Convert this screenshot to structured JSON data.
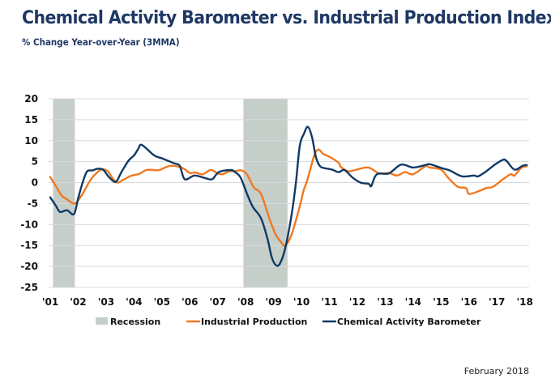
{
  "header": {
    "title": "Chemical Activity Barometer vs. Industrial Production Index",
    "subtitle": "% Change Year-over-Year (3MMA)"
  },
  "footer": {
    "date": "February 2018"
  },
  "colors": {
    "title": "#1f3864",
    "industrial_production": "#f07820",
    "chemical_activity_barometer": "#0f3a66",
    "recession": "#c5cec9",
    "grid": "#d9d9d9"
  },
  "chart_data": {
    "type": "line",
    "title": "Chemical Activity Barometer vs. Industrial Production Index",
    "subtitle": "% Change Year-over-Year (3MMA)",
    "xlabel": "",
    "ylabel": "",
    "xlim": [
      2001,
      2018.15
    ],
    "ylim": [
      -25,
      20
    ],
    "yticks": [
      20,
      15,
      10,
      5,
      0,
      -5,
      -10,
      -15,
      -20,
      -25
    ],
    "ytick_labels": [
      "20",
      "15",
      "10",
      "5",
      "0",
      "-5",
      "-10",
      "-15",
      "-20",
      "-25"
    ],
    "xticks": [
      2001,
      2002,
      2003,
      2004,
      2005,
      2006,
      2007,
      2008,
      2009,
      2010,
      2011,
      2012,
      2013,
      2014,
      2015,
      2016,
      2017,
      2018
    ],
    "xtick_labels": [
      "'01",
      "'02",
      "'03",
      "'04",
      "'05",
      "'06",
      "'07",
      "'08",
      "'09",
      "'10",
      "'11",
      "'12",
      "'13",
      "'14",
      "'15",
      "'16",
      "'17",
      "'18"
    ],
    "grid": true,
    "legend_position": "bottom",
    "legend": [
      "Recession",
      "Industrial Production",
      "Chemical Activity Barometer"
    ],
    "recessions": [
      {
        "start": 2001.1,
        "end": 2001.88
      },
      {
        "start": 2007.92,
        "end": 2009.5
      }
    ],
    "series": [
      {
        "name": "Industrial Production",
        "color": "#f07820",
        "points": [
          [
            2001.0,
            1.3
          ],
          [
            2001.2,
            -0.8
          ],
          [
            2001.4,
            -3.0
          ],
          [
            2001.6,
            -4.0
          ],
          [
            2001.87,
            -5.0
          ],
          [
            2002.1,
            -3.3
          ],
          [
            2002.35,
            -0.4
          ],
          [
            2002.54,
            1.5
          ],
          [
            2002.83,
            3.1
          ],
          [
            2003.06,
            2.7
          ],
          [
            2003.26,
            0.8
          ],
          [
            2003.41,
            0.0
          ],
          [
            2003.6,
            0.6
          ],
          [
            2003.85,
            1.5
          ],
          [
            2004.0,
            1.8
          ],
          [
            2004.2,
            2.1
          ],
          [
            2004.44,
            3.0
          ],
          [
            2004.7,
            3.0
          ],
          [
            2004.9,
            3.0
          ],
          [
            2005.3,
            4.0
          ],
          [
            2005.73,
            3.5
          ],
          [
            2006.0,
            2.3
          ],
          [
            2006.2,
            2.4
          ],
          [
            2006.46,
            2.0
          ],
          [
            2006.75,
            3.0
          ],
          [
            2007.0,
            2.2
          ],
          [
            2007.18,
            2.0
          ],
          [
            2007.4,
            2.7
          ],
          [
            2007.6,
            2.7
          ],
          [
            2007.85,
            2.9
          ],
          [
            2008.05,
            1.9
          ],
          [
            2008.3,
            -1.2
          ],
          [
            2008.55,
            -2.7
          ],
          [
            2008.85,
            -8.5
          ],
          [
            2009.07,
            -12.3
          ],
          [
            2009.27,
            -14.2
          ],
          [
            2009.42,
            -15.0
          ],
          [
            2009.65,
            -12.3
          ],
          [
            2009.94,
            -5.6
          ],
          [
            2010.07,
            -2.0
          ],
          [
            2010.19,
            0.2
          ],
          [
            2010.33,
            3.5
          ],
          [
            2010.48,
            6.9
          ],
          [
            2010.62,
            7.9
          ],
          [
            2010.77,
            6.9
          ],
          [
            2011.05,
            6.0
          ],
          [
            2011.35,
            4.6
          ],
          [
            2011.4,
            3.8
          ],
          [
            2011.68,
            2.7
          ],
          [
            2011.97,
            3.1
          ],
          [
            2012.4,
            3.6
          ],
          [
            2012.78,
            2.2
          ],
          [
            2013.13,
            2.3
          ],
          [
            2013.42,
            1.7
          ],
          [
            2013.71,
            2.5
          ],
          [
            2014.0,
            2.0
          ],
          [
            2014.44,
            3.9
          ],
          [
            2014.6,
            3.6
          ],
          [
            2015.0,
            3.1
          ],
          [
            2015.25,
            1.2
          ],
          [
            2015.6,
            -1.0
          ],
          [
            2015.89,
            -1.3
          ],
          [
            2016.0,
            -2.7
          ],
          [
            2016.33,
            -2.1
          ],
          [
            2016.62,
            -1.3
          ],
          [
            2016.86,
            -1.0
          ],
          [
            2017.2,
            0.7
          ],
          [
            2017.49,
            2.0
          ],
          [
            2017.63,
            1.7
          ],
          [
            2017.87,
            3.5
          ],
          [
            2018.07,
            3.9
          ]
        ]
      },
      {
        "name": "Chemical Activity Barometer",
        "color": "#0f3a66",
        "points": [
          [
            2001.0,
            -3.5
          ],
          [
            2001.2,
            -5.5
          ],
          [
            2001.35,
            -7.0
          ],
          [
            2001.6,
            -6.6
          ],
          [
            2001.85,
            -7.5
          ],
          [
            2002.0,
            -3.7
          ],
          [
            2002.17,
            0.2
          ],
          [
            2002.32,
            2.7
          ],
          [
            2002.52,
            2.9
          ],
          [
            2002.68,
            3.3
          ],
          [
            2002.89,
            3.1
          ],
          [
            2003.12,
            1.2
          ],
          [
            2003.35,
            0.2
          ],
          [
            2003.55,
            2.5
          ],
          [
            2003.8,
            5.2
          ],
          [
            2004.0,
            6.5
          ],
          [
            2004.15,
            8.0
          ],
          [
            2004.28,
            9.0
          ],
          [
            2004.72,
            6.5
          ],
          [
            2005.0,
            5.8
          ],
          [
            2005.44,
            4.6
          ],
          [
            2005.64,
            4.0
          ],
          [
            2005.82,
            0.8
          ],
          [
            2006.17,
            1.7
          ],
          [
            2006.54,
            1.1
          ],
          [
            2006.8,
            0.8
          ],
          [
            2007.04,
            2.5
          ],
          [
            2007.47,
            3.0
          ],
          [
            2007.62,
            2.5
          ],
          [
            2007.82,
            1.2
          ],
          [
            2008.05,
            -2.7
          ],
          [
            2008.26,
            -5.8
          ],
          [
            2008.55,
            -8.5
          ],
          [
            2008.78,
            -13.3
          ],
          [
            2008.93,
            -17.7
          ],
          [
            2009.07,
            -19.6
          ],
          [
            2009.22,
            -19.4
          ],
          [
            2009.42,
            -15.6
          ],
          [
            2009.65,
            -7.5
          ],
          [
            2009.8,
            0.0
          ],
          [
            2009.94,
            8.8
          ],
          [
            2010.09,
            11.7
          ],
          [
            2010.23,
            13.3
          ],
          [
            2010.38,
            10.8
          ],
          [
            2010.52,
            6.0
          ],
          [
            2010.67,
            3.9
          ],
          [
            2010.87,
            3.4
          ],
          [
            2011.1,
            3.1
          ],
          [
            2011.33,
            2.5
          ],
          [
            2011.54,
            3.0
          ],
          [
            2011.83,
            1.2
          ],
          [
            2012.12,
            0.0
          ],
          [
            2012.41,
            -0.3
          ],
          [
            2012.5,
            -0.8
          ],
          [
            2012.7,
            2.0
          ],
          [
            2013.13,
            2.2
          ],
          [
            2013.57,
            4.3
          ],
          [
            2014.0,
            3.6
          ],
          [
            2014.44,
            4.2
          ],
          [
            2014.6,
            4.4
          ],
          [
            2015.0,
            3.5
          ],
          [
            2015.31,
            2.9
          ],
          [
            2015.75,
            1.5
          ],
          [
            2016.18,
            1.7
          ],
          [
            2016.33,
            1.5
          ],
          [
            2016.62,
            2.7
          ],
          [
            2016.91,
            4.2
          ],
          [
            2017.2,
            5.4
          ],
          [
            2017.34,
            5.2
          ],
          [
            2017.63,
            3.1
          ],
          [
            2017.92,
            4.0
          ],
          [
            2018.07,
            4.2
          ]
        ]
      }
    ]
  }
}
